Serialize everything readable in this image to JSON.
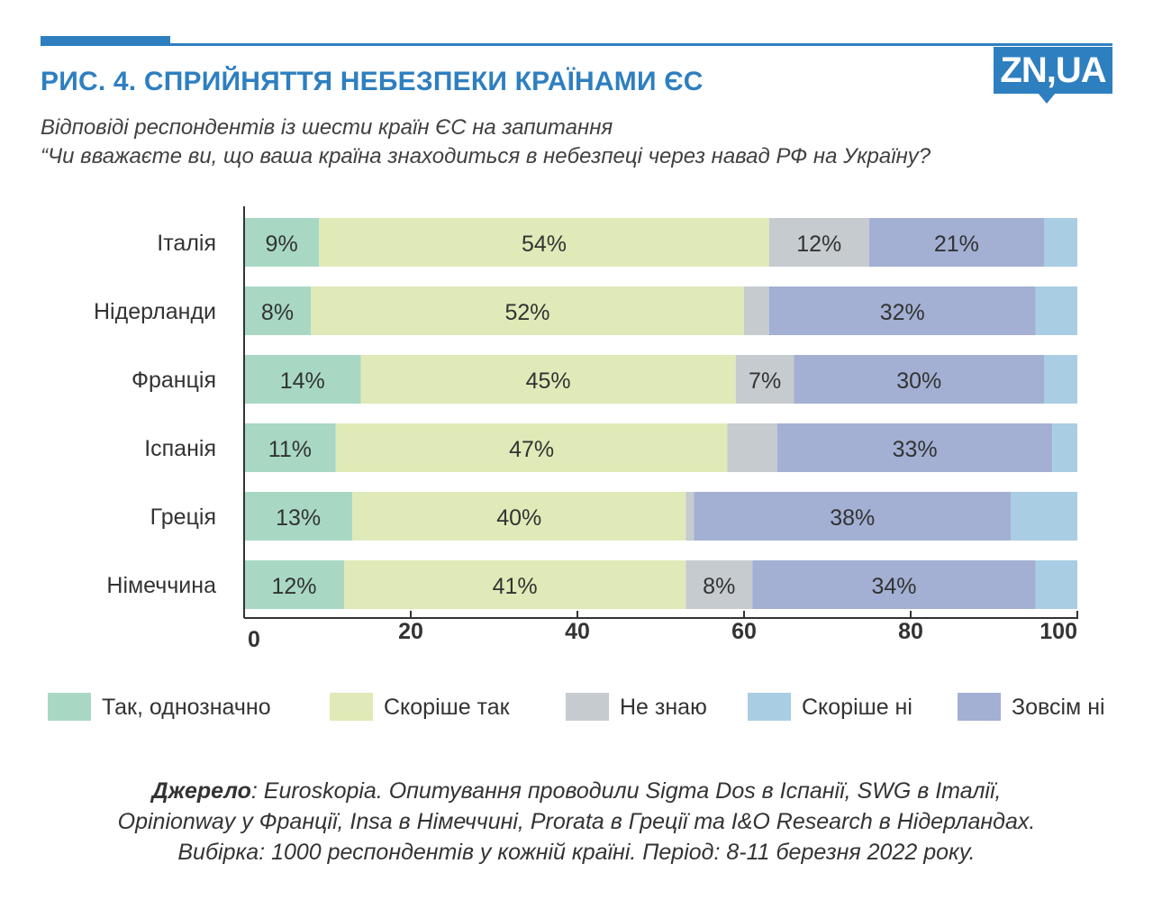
{
  "header": {
    "title": "РИС. 4. СПРИЙНЯТТЯ НЕБЕЗПЕКИ КРАЇНАМИ ЄС",
    "subtitle_line1": "Відповіді респондентів із шести країн ЄС на запитання",
    "subtitle_line2": "“Чи вважаєте ви, що ваша країна знаходиться в небезпеці через навад РФ на Україну?",
    "logo": "ZN,UA"
  },
  "colors": {
    "accent": "#2e7fc0",
    "yes_definitely": "#a8d8c4",
    "rather_yes": "#dfeab8",
    "dont_know": "#c6cbd0",
    "rather_no": "#a9cde3",
    "not_at_all": "#a3b0d3",
    "axis": "#333333"
  },
  "chart_data": {
    "type": "bar",
    "orientation": "horizontal",
    "stacked": true,
    "title": "РИС. 4. СПРИЙНЯТТЯ НЕБЕЗПЕКИ КРАЇНАМИ ЄС",
    "categories": [
      "Італія",
      "Нідерланди",
      "Франція",
      "Іспанія",
      "Греція",
      "Німеччина"
    ],
    "series": [
      {
        "name": "Так, однозначно",
        "color_key": "yes_definitely",
        "values": [
          9,
          8,
          14,
          11,
          13,
          12
        ]
      },
      {
        "name": "Скоріше так",
        "color_key": "rather_yes",
        "values": [
          54,
          52,
          45,
          47,
          40,
          41
        ]
      },
      {
        "name": "Не знаю",
        "color_key": "dont_know",
        "values": [
          12,
          3,
          7,
          6,
          1,
          8
        ]
      },
      {
        "name": "Зовсім ні",
        "color_key": "not_at_all",
        "values": [
          21,
          32,
          30,
          33,
          38,
          34
        ]
      },
      {
        "name": "Скоріше ні",
        "color_key": "rather_no",
        "values": [
          4,
          5,
          4,
          3,
          8,
          5
        ]
      }
    ],
    "data_labels": [
      [
        "9%",
        "54%",
        "12%",
        "21%",
        ""
      ],
      [
        "8%",
        "52%",
        "",
        "32%",
        ""
      ],
      [
        "14%",
        "45%",
        "7%",
        "30%",
        ""
      ],
      [
        "11%",
        "47%",
        "",
        "33%",
        ""
      ],
      [
        "13%",
        "40%",
        "",
        "38%",
        ""
      ],
      [
        "12%",
        "41%",
        "8%",
        "34%",
        ""
      ]
    ],
    "xlim": [
      0,
      100
    ],
    "xticks": [
      0,
      20,
      40,
      60,
      80,
      100
    ],
    "xtick_labels": [
      "0",
      "20",
      "40",
      "60",
      "80",
      "100"
    ],
    "xlabel": "",
    "ylabel": "",
    "grid": false,
    "legend_position": "bottom"
  },
  "legend": [
    {
      "label": "Так, однозначно",
      "color_key": "yes_definitely"
    },
    {
      "label": "Скоріше так",
      "color_key": "rather_yes"
    },
    {
      "label": "Не знаю",
      "color_key": "dont_know"
    },
    {
      "label": "Скоріше ні",
      "color_key": "rather_no"
    },
    {
      "label": "Зовсім ні",
      "color_key": "not_at_all"
    }
  ],
  "source": {
    "label": "Джерело",
    "line1_rest": ": Euroskopia. Опитування проводили Sigma Dos в Іспанії, SWG в Італії,",
    "line2": "Opinionway у Франції, Insa в Німеччині, Prorata в Греції та I&O Research в Нідерландах.",
    "line3": "Вибірка: 1000 респондентів у кожній країні. Період: 8-11 березня 2022 року."
  }
}
